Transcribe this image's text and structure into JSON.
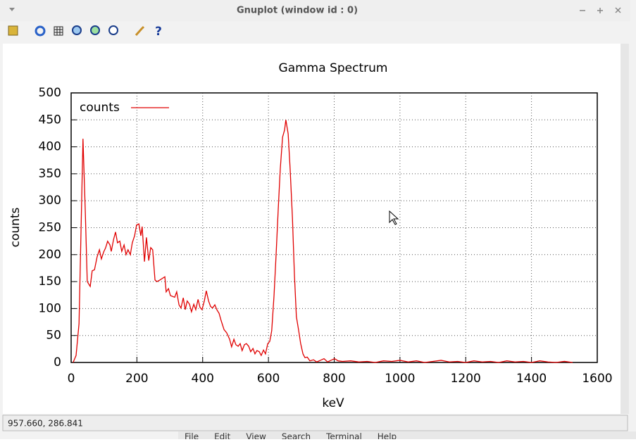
{
  "window": {
    "title": "Gnuplot (window id : 0)"
  },
  "status": "957.660,  286.841",
  "background_menu": [
    "File",
    "Edit",
    "View",
    "Search",
    "Terminal",
    "Help"
  ],
  "chart_data": {
    "type": "line",
    "title": "Gamma Spectrum",
    "x_label": "keV",
    "y_label": "counts",
    "x": [
      6,
      15,
      24,
      30,
      36,
      43,
      49,
      58,
      64,
      71,
      79,
      86,
      92,
      99,
      105,
      111,
      118,
      122,
      129,
      135,
      141,
      148,
      154,
      161,
      167,
      173,
      180,
      186,
      193,
      199,
      206,
      212,
      216,
      223,
      229,
      236,
      242,
      248,
      255,
      261,
      270,
      285,
      289,
      296,
      302,
      315,
      321,
      328,
      334,
      341,
      347,
      353,
      360,
      366,
      373,
      379,
      386,
      392,
      398,
      405,
      411,
      418,
      424,
      430,
      437,
      443,
      450,
      456,
      465,
      473,
      482,
      488,
      495,
      501,
      508,
      514,
      520,
      527,
      533,
      540,
      546,
      553,
      559,
      565,
      572,
      578,
      585,
      591,
      598,
      604,
      610,
      617,
      623,
      630,
      636,
      643,
      649,
      653,
      660,
      666,
      673,
      679,
      685,
      692,
      698,
      705,
      711,
      718,
      726,
      737,
      747,
      758,
      769,
      780,
      790,
      801,
      812,
      825,
      850,
      875,
      900,
      925,
      950,
      975,
      1000,
      1025,
      1050,
      1075,
      1100,
      1125,
      1150,
      1175,
      1200,
      1225,
      1250,
      1275,
      1300,
      1325,
      1350,
      1375,
      1400,
      1425,
      1450,
      1475,
      1500,
      1525
    ],
    "series": [
      {
        "name": "counts",
        "color": "#e00000",
        "values": [
          0,
          13,
          72,
          242,
          415,
          281,
          150,
          141,
          170,
          172,
          196,
          209,
          192,
          205,
          213,
          225,
          218,
          206,
          228,
          242,
          222,
          225,
          206,
          218,
          200,
          209,
          200,
          222,
          235,
          255,
          257,
          235,
          252,
          187,
          232,
          189,
          213,
          209,
          153,
          150,
          153,
          159,
          131,
          137,
          124,
          121,
          131,
          107,
          101,
          120,
          98,
          114,
          108,
          94,
          108,
          98,
          117,
          102,
          98,
          114,
          133,
          114,
          104,
          101,
          107,
          98,
          91,
          78,
          61,
          55,
          43,
          29,
          43,
          33,
          30,
          35,
          22,
          33,
          35,
          30,
          20,
          26,
          16,
          22,
          20,
          13,
          23,
          16,
          35,
          39,
          59,
          124,
          196,
          287,
          359,
          418,
          431,
          450,
          424,
          359,
          268,
          163,
          85,
          59,
          35,
          16,
          9,
          10,
          3,
          5,
          1,
          4,
          7,
          1,
          4,
          7,
          3,
          2,
          3,
          1,
          2,
          0,
          3,
          2,
          4,
          1,
          3,
          0,
          2,
          4,
          1,
          2,
          0,
          3,
          1,
          2,
          0,
          3,
          1,
          2,
          0,
          3,
          1,
          0,
          2,
          0
        ]
      }
    ],
    "xlim": [
      0,
      1600
    ],
    "ylim": [
      0,
      500
    ],
    "xticks": [
      0,
      200,
      400,
      600,
      800,
      1000,
      1200,
      1400,
      1600
    ],
    "yticks": [
      0,
      50,
      100,
      150,
      200,
      250,
      300,
      350,
      400,
      450,
      500
    ],
    "grid": true,
    "legend": "top-left"
  }
}
